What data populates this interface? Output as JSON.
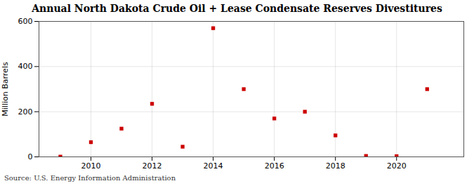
{
  "chart_data": {
    "type": "scatter",
    "title": "Annual North Dakota Crude Oil + Lease Condensate Reserves Divestitures",
    "ylabel": "Million Barrels",
    "source": "Source: U.S. Energy Information Administration",
    "x": [
      2009,
      2010,
      2011,
      2012,
      2013,
      2014,
      2015,
      2016,
      2017,
      2018,
      2019,
      2020,
      2021
    ],
    "values": [
      1,
      65,
      125,
      235,
      45,
      570,
      300,
      170,
      200,
      95,
      4,
      3,
      300
    ],
    "color": "#cc0000",
    "marker": "square",
    "xlim": [
      2008.3,
      2022.2
    ],
    "xticks": [
      2010,
      2012,
      2014,
      2016,
      2018,
      2020
    ],
    "ylim": [
      0,
      600
    ],
    "yticks": [
      0,
      200,
      400,
      600
    ],
    "grid": true
  }
}
